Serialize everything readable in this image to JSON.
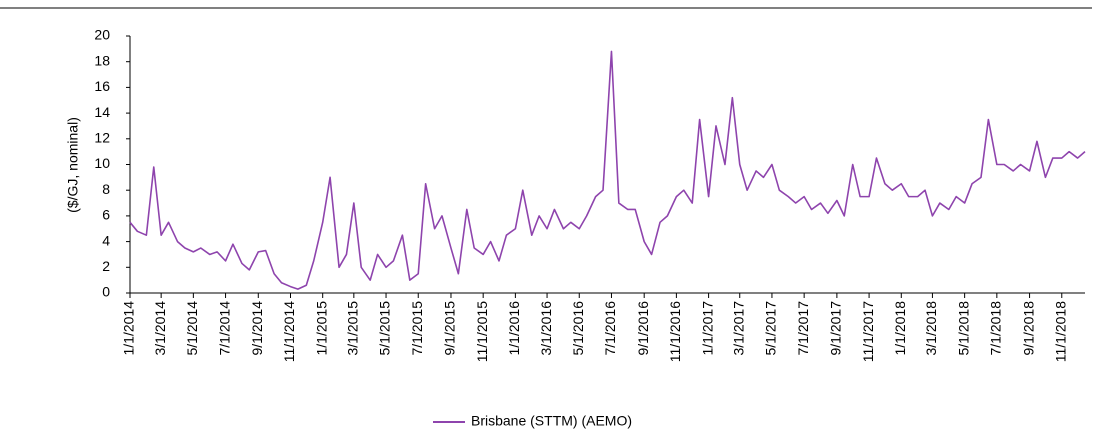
{
  "chart_data": {
    "type": "line",
    "y_label": "($/GJ, nominal)",
    "x": [
      "1/1/2014",
      "1/15/2014",
      "2/1/2014",
      "2/15/2014",
      "3/1/2014",
      "3/15/2014",
      "4/1/2014",
      "4/15/2014",
      "5/1/2014",
      "5/15/2014",
      "6/1/2014",
      "6/15/2014",
      "7/1/2014",
      "7/15/2014",
      "8/1/2014",
      "8/15/2014",
      "9/1/2014",
      "9/15/2014",
      "10/1/2014",
      "10/15/2014",
      "11/1/2014",
      "11/15/2014",
      "12/1/2014",
      "12/15/2014",
      "1/1/2015",
      "1/15/2015",
      "2/1/2015",
      "2/15/2015",
      "3/1/2015",
      "3/15/2015",
      "4/1/2015",
      "4/15/2015",
      "5/1/2015",
      "5/15/2015",
      "6/1/2015",
      "6/15/2015",
      "7/1/2015",
      "7/15/2015",
      "8/1/2015",
      "8/15/2015",
      "9/1/2015",
      "9/15/2015",
      "10/1/2015",
      "10/15/2015",
      "11/1/2015",
      "11/15/2015",
      "12/1/2015",
      "12/15/2015",
      "1/1/2016",
      "1/15/2016",
      "2/1/2016",
      "2/15/2016",
      "3/1/2016",
      "3/15/2016",
      "4/1/2016",
      "4/15/2016",
      "5/1/2016",
      "5/15/2016",
      "6/1/2016",
      "6/15/2016",
      "7/1/2016",
      "7/15/2016",
      "8/1/2016",
      "8/15/2016",
      "9/1/2016",
      "9/15/2016",
      "10/1/2016",
      "10/15/2016",
      "11/1/2016",
      "11/15/2016",
      "12/1/2016",
      "12/15/2016",
      "1/1/2017",
      "1/15/2017",
      "2/1/2017",
      "2/15/2017",
      "3/1/2017",
      "3/15/2017",
      "4/1/2017",
      "4/15/2017",
      "5/1/2017",
      "5/15/2017",
      "6/1/2017",
      "6/15/2017",
      "7/1/2017",
      "7/15/2017",
      "8/1/2017",
      "8/15/2017",
      "9/1/2017",
      "9/15/2017",
      "10/1/2017",
      "10/15/2017",
      "11/1/2017",
      "11/15/2017",
      "12/1/2017",
      "12/15/2017",
      "1/1/2018",
      "1/15/2018",
      "2/1/2018",
      "2/15/2018",
      "3/1/2018",
      "3/15/2018",
      "4/1/2018",
      "4/15/2018",
      "5/1/2018",
      "5/15/2018",
      "6/1/2018",
      "6/15/2018",
      "7/1/2018",
      "7/15/2018",
      "8/1/2018",
      "8/15/2018",
      "9/1/2018",
      "9/15/2018",
      "10/1/2018",
      "10/15/2018",
      "11/1/2018",
      "11/15/2018",
      "12/1/2018",
      "12/15/2018"
    ],
    "series": [
      {
        "name": "Brisbane (STTM) (AEMO)",
        "color": "#8e44ad",
        "values": [
          5.5,
          4.8,
          4.5,
          9.8,
          4.5,
          5.5,
          4,
          3.5,
          3.2,
          3.5,
          3,
          3.2,
          2.5,
          3.8,
          2.3,
          1.8,
          3.2,
          3.3,
          1.5,
          0.8,
          0.5,
          0.3,
          0.6,
          2.5,
          5.5,
          9,
          2,
          3,
          7,
          2,
          1,
          3,
          2,
          2.5,
          4.5,
          1,
          1.5,
          8.5,
          5,
          6,
          3.5,
          1.5,
          6.5,
          3.5,
          3,
          4,
          2.5,
          4.5,
          5,
          8,
          4.5,
          6,
          5,
          6.5,
          5,
          5.5,
          5,
          6,
          7.5,
          8,
          18.8,
          7,
          6.5,
          6.5,
          4,
          3,
          5.5,
          6,
          7.5,
          8,
          7,
          13.5,
          7.5,
          13,
          10,
          15.2,
          10,
          8,
          9.5,
          9,
          10,
          8,
          7.5,
          7,
          7.5,
          6.5,
          7,
          6.2,
          7.2,
          6,
          10,
          7.5,
          7.5,
          10.5,
          8.5,
          8,
          8.5,
          7.5,
          7.5,
          8,
          6,
          7,
          6.5,
          7.5,
          7,
          8.5,
          9,
          13.5,
          10,
          10,
          9.5,
          10,
          9.5,
          11.8,
          9,
          10.5,
          10.5,
          11,
          10.5,
          11
        ]
      }
    ],
    "xlim": [
      "1/1/2014",
      "12/15/2018"
    ],
    "xticks": [
      "1/1/2014",
      "3/1/2014",
      "5/1/2014",
      "7/1/2014",
      "9/1/2014",
      "11/1/2014",
      "1/1/2015",
      "3/1/2015",
      "5/1/2015",
      "7/1/2015",
      "9/1/2015",
      "11/1/2015",
      "1/1/2016",
      "3/1/2016",
      "5/1/2016",
      "7/1/2016",
      "9/1/2016",
      "11/1/2016",
      "1/1/2017",
      "3/1/2017",
      "5/1/2017",
      "7/1/2017",
      "9/1/2017",
      "11/1/2017",
      "1/1/2018",
      "3/1/2018",
      "5/1/2018",
      "7/1/2018",
      "9/1/2018",
      "11/1/2018"
    ],
    "ylim": [
      0,
      20
    ],
    "yticks": [
      0,
      2,
      4,
      6,
      8,
      10,
      12,
      14,
      16,
      18,
      20
    ],
    "grid": false,
    "legend": "bottom"
  }
}
